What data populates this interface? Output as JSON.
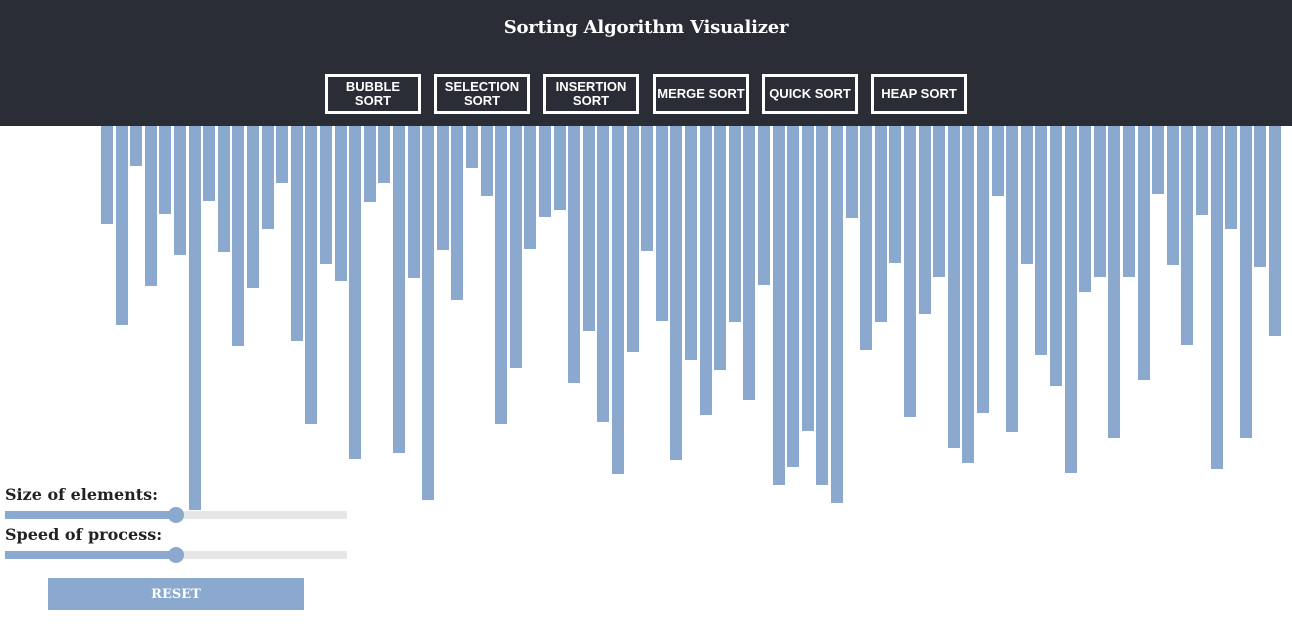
{
  "app": {
    "title": "Sorting Algorithm Visualizer"
  },
  "colors": {
    "header_bg": "#2a2d36",
    "bar": "#8ba9cf",
    "track": "#e6e6e6",
    "text_light": "#ffffff"
  },
  "algorithms": [
    {
      "label": "BUBBLE\nSORT"
    },
    {
      "label": "SELECTION\nSORT"
    },
    {
      "label": "INSERTION\nSORT"
    },
    {
      "label": "MERGE SORT"
    },
    {
      "label": "QUICK SORT"
    },
    {
      "label": "HEAP SORT"
    }
  ],
  "controls": {
    "size_label": "Size of elements:",
    "size_level": 0.5,
    "speed_label": "Speed of process:",
    "speed_level": 0.5,
    "reset_label": "RESET"
  },
  "array_values": [
    98,
    199,
    40,
    160,
    88,
    129,
    384,
    75,
    126,
    220,
    162,
    103,
    57,
    215,
    298,
    138,
    155,
    333,
    76,
    57,
    327,
    152,
    374,
    124,
    174,
    42,
    70,
    298,
    242,
    123,
    91,
    84,
    257,
    205,
    296,
    348,
    226,
    125,
    195,
    334,
    234,
    289,
    244,
    196,
    274,
    159,
    359,
    341,
    305,
    359,
    377,
    92,
    224,
    196,
    137,
    291,
    188,
    151,
    322,
    337,
    287,
    70,
    306,
    138,
    229,
    260,
    347,
    166,
    151,
    312,
    151,
    254,
    68,
    139,
    219,
    89,
    343,
    103,
    312,
    141,
    210
  ],
  "array_max": 400
}
